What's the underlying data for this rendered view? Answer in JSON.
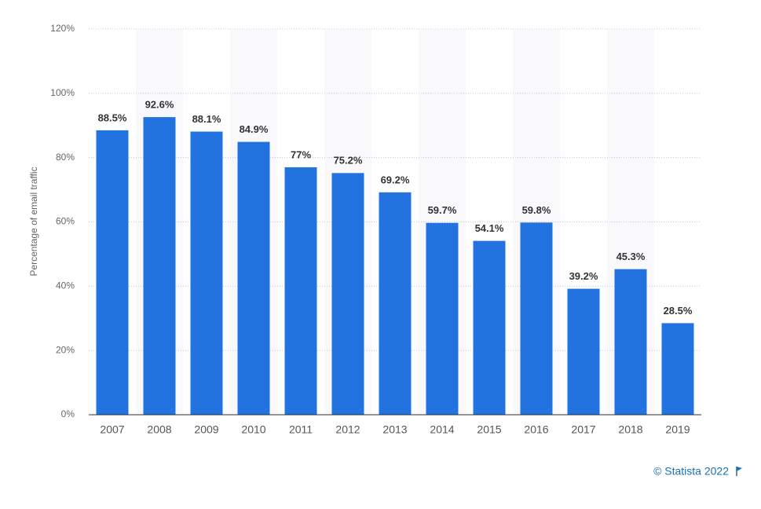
{
  "chart_data": {
    "type": "bar",
    "y_label": "Percentage of email traffic",
    "credit": "© Statista 2022",
    "categories": [
      "2007",
      "2008",
      "2009",
      "2010",
      "2011",
      "2012",
      "2013",
      "2014",
      "2015",
      "2016",
      "2017",
      "2018",
      "2019"
    ],
    "values": [
      88.5,
      92.6,
      88.1,
      84.9,
      77,
      75.2,
      69.2,
      59.7,
      54.1,
      59.8,
      39.2,
      45.3,
      28.5
    ],
    "value_labels": [
      "88.5%",
      "92.6%",
      "88.1%",
      "84.9%",
      "77%",
      "75.2%",
      "69.2%",
      "59.7%",
      "54.1%",
      "59.8%",
      "39.2%",
      "45.3%",
      "28.5%"
    ],
    "color": "#2272e0",
    "ylim": [
      0,
      120
    ],
    "yticks": [
      {
        "value": 0,
        "label": "0%"
      },
      {
        "value": 20,
        "label": "20%"
      },
      {
        "value": 40,
        "label": "40%"
      },
      {
        "value": 60,
        "label": "60%"
      },
      {
        "value": 80,
        "label": "80%"
      },
      {
        "value": 100,
        "label": "100%"
      },
      {
        "value": 120,
        "label": "120%"
      }
    ],
    "grid": true
  }
}
